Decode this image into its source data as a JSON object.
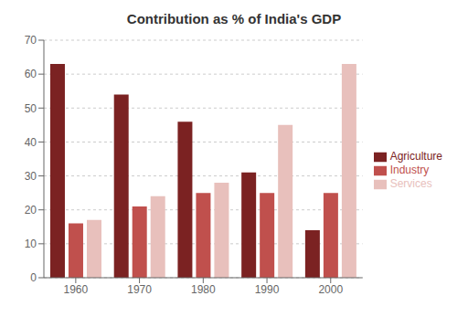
{
  "chart_data": {
    "type": "bar",
    "title": "Contribution as % of India's GDP",
    "categories": [
      "1960",
      "1970",
      "1980",
      "1990",
      "2000"
    ],
    "series": [
      {
        "name": "Agriculture",
        "color": "#7B2222",
        "values": [
          63,
          54,
          46,
          31,
          14
        ]
      },
      {
        "name": "Industry",
        "color": "#C0504D",
        "values": [
          16,
          21,
          25,
          25,
          25
        ]
      },
      {
        "name": "Services",
        "color": "#E8C0BC",
        "values": [
          17,
          24,
          28,
          45,
          63
        ]
      }
    ],
    "ylim": [
      0,
      70
    ],
    "yticks": [
      0,
      10,
      20,
      30,
      40,
      50,
      60,
      70
    ],
    "grid": true,
    "legend": "right"
  }
}
